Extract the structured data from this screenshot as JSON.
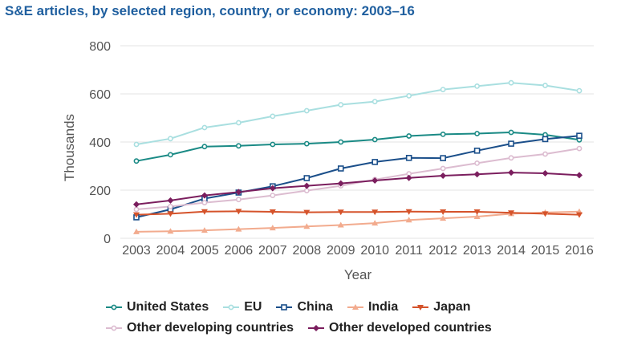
{
  "title": "S&E articles, by selected region, country, or economy: 2003–16",
  "chart_data": {
    "type": "line",
    "ylabel": "Thousands",
    "xlabel": "Year",
    "ylim": [
      0,
      800
    ],
    "yticks": [
      0,
      200,
      400,
      600,
      800
    ],
    "grid": true,
    "legend_position": "bottom",
    "x": [
      "2003",
      "2004",
      "2005",
      "2006",
      "2007",
      "2008",
      "2009",
      "2010",
      "2011",
      "2012",
      "2013",
      "2014",
      "2015",
      "2016"
    ],
    "series": [
      {
        "name": "United States",
        "color": "#1a8a85",
        "marker": "circle",
        "values": [
          321,
          347,
          381,
          384,
          390,
          393,
          400,
          410,
          425,
          432,
          435,
          440,
          430,
          409
        ]
      },
      {
        "name": "EU",
        "color": "#a9dfe0",
        "marker": "circle",
        "values": [
          390,
          414,
          460,
          480,
          507,
          530,
          555,
          568,
          592,
          618,
          632,
          646,
          635,
          613
        ]
      },
      {
        "name": "China",
        "color": "#1b4f8a",
        "marker": "square",
        "values": [
          87,
          120,
          165,
          190,
          216,
          250,
          290,
          317,
          334,
          333,
          364,
          393,
          412,
          426
        ]
      },
      {
        "name": "India",
        "color": "#f2ab8e",
        "marker": "triangle",
        "values": [
          27,
          29,
          33,
          38,
          43,
          49,
          55,
          63,
          76,
          83,
          90,
          102,
          107,
          111
        ]
      },
      {
        "name": "Japan",
        "color": "#d5532b",
        "marker": "triangle-down",
        "values": [
          98,
          102,
          111,
          112,
          110,
          108,
          109,
          109,
          111,
          110,
          110,
          106,
          102,
          98
        ]
      },
      {
        "name": "Other developing countries",
        "color": "#dcbcd0",
        "marker": "circle",
        "values": [
          120,
          132,
          148,
          161,
          178,
          198,
          218,
          244,
          268,
          290,
          312,
          334,
          350,
          373
        ]
      },
      {
        "name": "Other developed countries",
        "color": "#7b1e5e",
        "marker": "diamond",
        "values": [
          141,
          157,
          178,
          192,
          208,
          218,
          228,
          240,
          251,
          260,
          266,
          273,
          270,
          262
        ]
      }
    ],
    "legend_rows": [
      [
        0,
        1,
        2,
        3,
        4
      ],
      [
        5,
        6
      ]
    ]
  }
}
